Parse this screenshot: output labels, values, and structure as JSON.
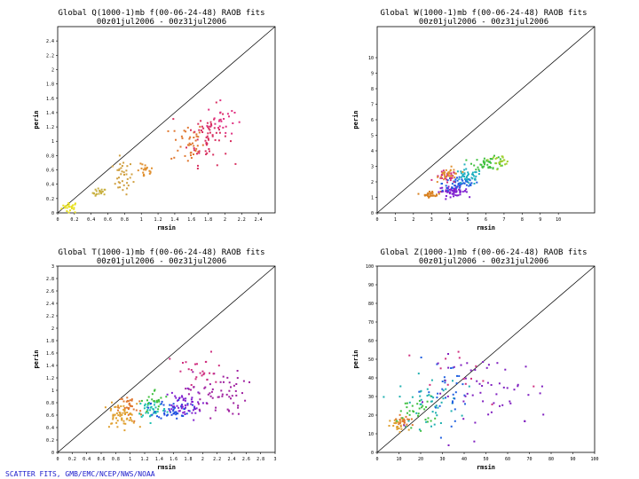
{
  "footer": "SCATTER FITS, GMB/EMC/NCEP/NWS/NOAA",
  "chart_data": [
    {
      "type": "scatter",
      "title": "Global Q(1000-1)mb  f(00-06-24-48) RAOB fits",
      "subtitle": "00z01jul2006 - 00z31jul2006",
      "xlabel": "rmsin",
      "ylabel": "perin",
      "xlim": [
        0,
        2.6
      ],
      "ylim": [
        0,
        2.6
      ],
      "xticks": [
        "0",
        "0.2",
        "0.4",
        "0.6",
        "0.8",
        "1",
        "1.2",
        "1.4",
        "1.6",
        "1.8",
        "2",
        "2.2",
        "2.4"
      ],
      "yticks": [
        "0",
        "0.2",
        "0.4",
        "0.6",
        "0.8",
        "1",
        "1.2",
        "1.4",
        "1.6",
        "1.8",
        "2",
        "2.2",
        "2.4"
      ],
      "clusters": [
        {
          "color": "#e8e020",
          "x": 0.15,
          "y": 0.08,
          "sx": 0.05,
          "sy": 0.04,
          "n": 25
        },
        {
          "color": "#c8b040",
          "x": 0.5,
          "y": 0.28,
          "sx": 0.04,
          "sy": 0.03,
          "n": 20
        },
        {
          "color": "#d0a040",
          "x": 0.78,
          "y": 0.5,
          "sx": 0.06,
          "sy": 0.12,
          "n": 35
        },
        {
          "color": "#e09030",
          "x": 1.05,
          "y": 0.58,
          "sx": 0.05,
          "sy": 0.05,
          "n": 20
        },
        {
          "color": "#e07830",
          "x": 1.55,
          "y": 0.98,
          "sx": 0.1,
          "sy": 0.15,
          "n": 40
        },
        {
          "color": "#d83060",
          "x": 1.8,
          "y": 1.08,
          "sx": 0.12,
          "sy": 0.2,
          "n": 60
        },
        {
          "color": "#e03080",
          "x": 1.95,
          "y": 1.3,
          "sx": 0.08,
          "sy": 0.12,
          "n": 25
        }
      ]
    },
    {
      "type": "scatter",
      "title": "Global W(1000-1)mb  f(00-06-24-48) RAOB fits",
      "subtitle": "00z01jul2006 - 00z31jul2006",
      "xlabel": "rmsin",
      "ylabel": "perin",
      "xlim": [
        0,
        12
      ],
      "ylim": [
        0,
        12
      ],
      "xticks": [
        "0",
        "1",
        "2",
        "3",
        "4",
        "5",
        "6",
        "7",
        "8",
        "9",
        "10"
      ],
      "yticks": [
        "0",
        "1",
        "2",
        "3",
        "4",
        "5",
        "6",
        "7",
        "8",
        "9",
        "10"
      ],
      "clusters": [
        {
          "color": "#d88020",
          "x": 3.0,
          "y": 1.2,
          "sx": 0.25,
          "sy": 0.1,
          "n": 30
        },
        {
          "color": "#8020d0",
          "x": 4.2,
          "y": 1.4,
          "sx": 0.4,
          "sy": 0.15,
          "n": 60
        },
        {
          "color": "#2060e0",
          "x": 4.6,
          "y": 1.9,
          "sx": 0.5,
          "sy": 0.25,
          "n": 50
        },
        {
          "color": "#20b0c0",
          "x": 5.0,
          "y": 2.3,
          "sx": 0.4,
          "sy": 0.25,
          "n": 40
        },
        {
          "color": "#d03080",
          "x": 3.8,
          "y": 2.3,
          "sx": 0.3,
          "sy": 0.2,
          "n": 30
        },
        {
          "color": "#e09030",
          "x": 4.0,
          "y": 2.5,
          "sx": 0.3,
          "sy": 0.2,
          "n": 30
        },
        {
          "color": "#40c040",
          "x": 6.2,
          "y": 3.2,
          "sx": 0.45,
          "sy": 0.2,
          "n": 45
        },
        {
          "color": "#a0d030",
          "x": 6.8,
          "y": 3.4,
          "sx": 0.3,
          "sy": 0.15,
          "n": 20
        }
      ]
    },
    {
      "type": "scatter",
      "title": "Global T(1000-1)mb  f(00-06-24-48) RAOB fits",
      "subtitle": "00z01jul2006 - 00z31jul2006",
      "xlabel": "rmsin",
      "ylabel": "perin",
      "xlim": [
        0,
        3
      ],
      "ylim": [
        0,
        3
      ],
      "xticks": [
        "0",
        "0.2",
        "0.4",
        "0.6",
        "0.8",
        "1",
        "1.2",
        "1.4",
        "1.6",
        "1.8",
        "2",
        "2.2",
        "2.4",
        "2.6",
        "2.8",
        "3"
      ],
      "yticks": [
        "0",
        "0.2",
        "0.4",
        "0.6",
        "0.8",
        "1",
        "1.2",
        "1.4",
        "1.6",
        "1.8",
        "2",
        "2.2",
        "2.4",
        "2.6",
        "2.8",
        "3"
      ],
      "clusters": [
        {
          "color": "#e0a030",
          "x": 0.85,
          "y": 0.58,
          "sx": 0.12,
          "sy": 0.1,
          "n": 60
        },
        {
          "color": "#e07830",
          "x": 1.0,
          "y": 0.72,
          "sx": 0.08,
          "sy": 0.12,
          "n": 30
        },
        {
          "color": "#20c0b0",
          "x": 1.3,
          "y": 0.7,
          "sx": 0.1,
          "sy": 0.08,
          "n": 40
        },
        {
          "color": "#40c040",
          "x": 1.35,
          "y": 0.82,
          "sx": 0.1,
          "sy": 0.1,
          "n": 20
        },
        {
          "color": "#2050e0",
          "x": 1.6,
          "y": 0.7,
          "sx": 0.12,
          "sy": 0.08,
          "n": 50
        },
        {
          "color": "#8020d0",
          "x": 1.7,
          "y": 0.75,
          "sx": 0.15,
          "sy": 0.12,
          "n": 50
        },
        {
          "color": "#a020a0",
          "x": 2.2,
          "y": 0.95,
          "sx": 0.2,
          "sy": 0.18,
          "n": 60
        },
        {
          "color": "#d03080",
          "x": 1.95,
          "y": 1.3,
          "sx": 0.2,
          "sy": 0.15,
          "n": 25
        }
      ]
    },
    {
      "type": "scatter",
      "title": "Global Z(1000-1)mb  f(00-06-24-48) RAOB fits",
      "subtitle": "00z01jul2006 - 00z31jul2006",
      "xlabel": "rmsin",
      "ylabel": "perin",
      "xlim": [
        0,
        100
      ],
      "ylim": [
        0,
        100
      ],
      "xticks": [
        "0",
        "10",
        "20",
        "30",
        "40",
        "50",
        "60",
        "70",
        "80",
        "90",
        "100"
      ],
      "yticks": [
        "0",
        "10",
        "20",
        "30",
        "40",
        "50",
        "60",
        "70",
        "80",
        "90",
        "100"
      ],
      "clusters": [
        {
          "color": "#e0a030",
          "x": 10,
          "y": 14,
          "sx": 2,
          "sy": 2,
          "n": 25
        },
        {
          "color": "#e07830",
          "x": 13,
          "y": 17,
          "sx": 3,
          "sy": 2,
          "n": 20
        },
        {
          "color": "#40c040",
          "x": 18,
          "y": 22,
          "sx": 4,
          "sy": 4,
          "n": 30
        },
        {
          "color": "#20b0b0",
          "x": 24,
          "y": 27,
          "sx": 7,
          "sy": 7,
          "n": 45
        },
        {
          "color": "#2060e0",
          "x": 33,
          "y": 33,
          "sx": 8,
          "sy": 8,
          "n": 30
        },
        {
          "color": "#8020c0",
          "x": 52,
          "y": 32,
          "sx": 14,
          "sy": 10,
          "n": 55
        },
        {
          "color": "#d03080",
          "x": 45,
          "y": 42,
          "sx": 15,
          "sy": 8,
          "n": 15
        }
      ]
    }
  ]
}
